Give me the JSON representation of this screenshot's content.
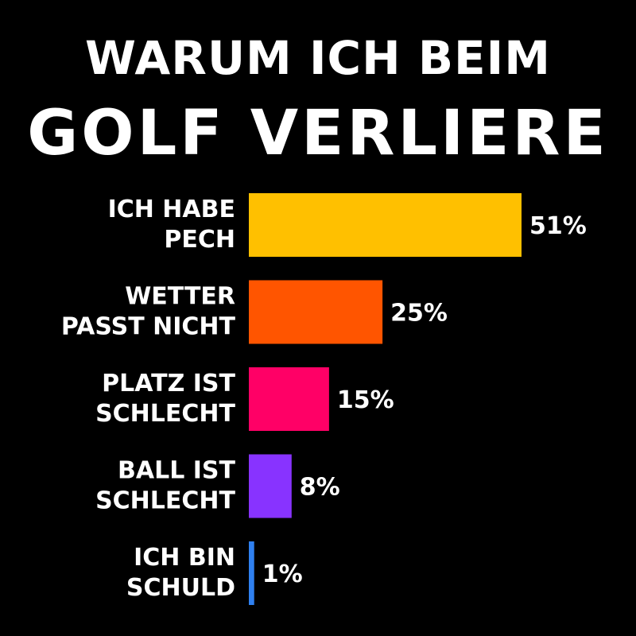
{
  "title_line1": "WARUM ICH BEIM",
  "title_line2": "GOLF VERLIERE",
  "chart_data": {
    "type": "bar",
    "orientation": "horizontal",
    "title": "WARUM ICH BEIM GOLF VERLIERE",
    "categories": [
      [
        "ICH HABE",
        "PECH"
      ],
      [
        "WETTER",
        "PASST NICHT"
      ],
      [
        "PLATZ IST",
        "SCHLECHT"
      ],
      [
        "BALL IST",
        "SCHLECHT"
      ],
      [
        "ICH BIN",
        "SCHULD"
      ]
    ],
    "values": [
      51,
      25,
      15,
      8,
      1
    ],
    "value_labels": [
      "51%",
      "25%",
      "15%",
      "8%",
      "1%"
    ],
    "colors": [
      "#FFC000",
      "#FF5500",
      "#FF0066",
      "#8833FF",
      "#2F80F0"
    ],
    "xlim": [
      0,
      51
    ],
    "grid": false,
    "legend": "none"
  }
}
